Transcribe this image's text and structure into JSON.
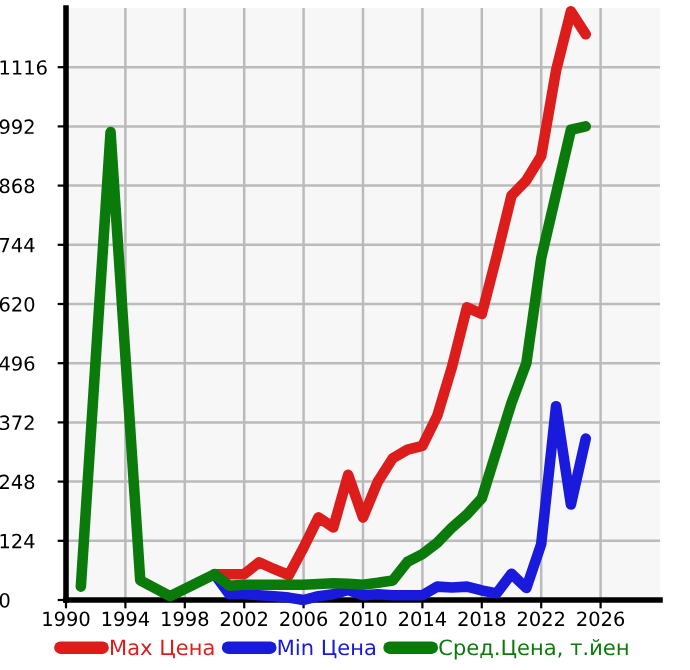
{
  "chart_data": {
    "type": "line",
    "xlim": [
      1990,
      2030
    ],
    "xticks": [
      1990,
      1994,
      1998,
      2002,
      2006,
      2010,
      2014,
      2018,
      2022,
      2026
    ],
    "ylim": [
      0,
      1240
    ],
    "yticks": [
      0,
      124,
      248,
      372,
      496,
      620,
      744,
      868,
      992,
      1116
    ],
    "grid": true,
    "legend": "bottom",
    "marker": "none",
    "line_style": "solid",
    "series": [
      {
        "name": "Max Цена",
        "color": "#dd1c1c",
        "x": [
          2000,
          2001,
          2002,
          2003,
          2004,
          2005,
          2006,
          2007,
          2008,
          2009,
          2010,
          2011,
          2012,
          2013,
          2014,
          2015,
          2016,
          2017,
          2018,
          2019,
          2020,
          2021,
          2022,
          2023,
          2024,
          2025
        ],
        "values": [
          54,
          54,
          54,
          79,
          65,
          52,
          110,
          173,
          152,
          262,
          173,
          248,
          297,
          315,
          323,
          386,
          489,
          613,
          599,
          720,
          847,
          879,
          930,
          1109,
          1233,
          1185
        ]
      },
      {
        "name": "Min Цена",
        "color": "#1a1adc",
        "x": [
          2000,
          2001,
          2002,
          2003,
          2004,
          2005,
          2006,
          2007,
          2008,
          2009,
          2010,
          2011,
          2012,
          2013,
          2014,
          2015,
          2016,
          2017,
          2018,
          2019,
          2020,
          2021,
          2022,
          2023,
          2024,
          2025
        ],
        "values": [
          54,
          12,
          12,
          10,
          8,
          5,
          0,
          8,
          12,
          21,
          10,
          12,
          10,
          10,
          10,
          28,
          26,
          28,
          20,
          14,
          55,
          25,
          117,
          406,
          200,
          338
        ]
      },
      {
        "name": "Сред.Цена, т.йен",
        "color": "#0a7a0a",
        "x": [
          1991,
          1993,
          1995,
          1997,
          2000,
          2001,
          2002,
          2004,
          2006,
          2008,
          2009,
          2010,
          2011,
          2012,
          2013,
          2014,
          2015,
          2016,
          2017,
          2018,
          2020,
          2021,
          2022,
          2024,
          2025
        ],
        "values": [
          28,
          980,
          41,
          8,
          54,
          30,
          32,
          32,
          32,
          35,
          34,
          32,
          36,
          41,
          80,
          96,
          120,
          152,
          179,
          213,
          413,
          496,
          716,
          985,
          992
        ]
      }
    ]
  }
}
